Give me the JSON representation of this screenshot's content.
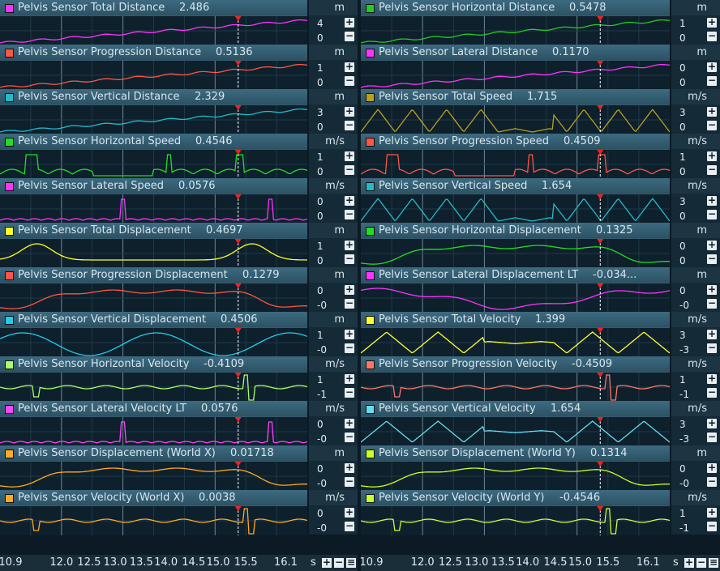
{
  "panels": [
    {
      "label": "Pelvis Sensor Total Distance",
      "value": "2.486",
      "unit": "m",
      "ticks": [
        "4",
        "0"
      ],
      "color": "#ff33ff",
      "shape": "rise",
      "vx": 205
    },
    {
      "label": "Pelvis Sensor Horizontal Distance",
      "value": "0.5478",
      "unit": "m",
      "ticks": [
        "1",
        "0"
      ],
      "color": "#22cc22",
      "shape": "rise",
      "vx": 243
    },
    {
      "label": "Pelvis Sensor Progression Distance",
      "value": "0.5136",
      "unit": "m",
      "ticks": [
        "1",
        "0"
      ],
      "color": "#ff5544",
      "shape": "rise",
      "vx": 250
    },
    {
      "label": "Pelvis Sensor Lateral Distance",
      "value": "0.1170",
      "unit": "m",
      "ticks": [
        "0",
        "0"
      ],
      "color": "#ff33ff",
      "shape": "rise",
      "vx": 210
    },
    {
      "label": "Pelvis Sensor Vertical Distance",
      "value": "2.329",
      "unit": "m",
      "ticks": [
        "3",
        "0"
      ],
      "color": "#22bbcc",
      "shape": "rise",
      "vx": 215
    },
    {
      "label": "Pelvis Sensor Total Speed",
      "value": "1.715",
      "unit": "m/s",
      "ticks": [
        "3",
        "0"
      ],
      "color": "#b8a020",
      "shape": "tri",
      "vx": 185
    },
    {
      "label": "Pelvis Sensor Horizontal Speed",
      "value": "0.4546",
      "unit": "m/s",
      "ticks": [
        "1",
        "0"
      ],
      "color": "#22dd22",
      "shape": "spiky",
      "vx": 220
    },
    {
      "label": "Pelvis Sensor Progression Speed",
      "value": "0.4509",
      "unit": "m/s",
      "ticks": [
        "1",
        "0"
      ],
      "color": "#ff5544",
      "shape": "spiky",
      "vx": 220
    },
    {
      "label": "Pelvis Sensor Lateral Speed",
      "value": "0.0576",
      "unit": "m/s",
      "ticks": [
        "0",
        "0"
      ],
      "color": "#ff33ff",
      "shape": "low",
      "vx": 205
    },
    {
      "label": "Pelvis Sensor Vertical Speed",
      "value": "1.654",
      "unit": "m/s",
      "ticks": [
        "3",
        "0"
      ],
      "color": "#22bbcc",
      "shape": "tri",
      "vx": 220
    },
    {
      "label": "Pelvis Sensor Total Displacement",
      "value": "0.4697",
      "unit": "m",
      "ticks": [
        "1",
        "0"
      ],
      "color": "#ffff22",
      "shape": "hump",
      "vx": 218
    },
    {
      "label": "Pelvis Sensor Horizontal Displacement",
      "value": "0.1325",
      "unit": "m",
      "ticks": [
        "0",
        "0"
      ],
      "color": "#22dd22",
      "shape": "plateau",
      "vx": 260
    },
    {
      "label": "Pelvis Sensor Progression Displacement",
      "value": "0.1279",
      "unit": "m",
      "ticks": [
        "0",
        "-0"
      ],
      "color": "#ff5544",
      "shape": "plateau",
      "vx": 268
    },
    {
      "label": "Pelvis Sensor Lateral Displacement LT",
      "value": "-0.034...",
      "unit": "m",
      "ticks": [
        "0",
        "-0"
      ],
      "color": "#ff33ff",
      "shape": "dip",
      "vx": 262
    },
    {
      "label": "Pelvis Sensor Vertical Displacement",
      "value": "0.4506",
      "unit": "m",
      "ticks": [
        "1",
        "-0"
      ],
      "color": "#22ccee",
      "shape": "sine",
      "vx": 218
    },
    {
      "label": "Pelvis Sensor Total Velocity",
      "value": "1.399",
      "unit": "m/s",
      "ticks": [
        "3",
        "-3"
      ],
      "color": "#ffff33",
      "shape": "zig",
      "vx": 190
    },
    {
      "label": "Pelvis Sensor Horizontal Velocity",
      "value": "-0.4109",
      "unit": "m/s",
      "ticks": [
        "1",
        "-1"
      ],
      "color": "#aaff66",
      "shape": "flatspike",
      "vx": 230
    },
    {
      "label": "Pelvis Sensor Progression Velocity",
      "value": "-0.4509",
      "unit": "m/s",
      "ticks": [
        "1",
        "-1"
      ],
      "color": "#ff7766",
      "shape": "flatspike",
      "vx": 230
    },
    {
      "label": "Pelvis Sensor Lateral Velocity LT",
      "value": "0.0576",
      "unit": "m/s",
      "ticks": [
        "0",
        "-0"
      ],
      "color": "#ff44ff",
      "shape": "low",
      "vx": 230
    },
    {
      "label": "Pelvis Sensor Vertical Velocity",
      "value": "1.654",
      "unit": "m/s",
      "ticks": [
        "3",
        "-3"
      ],
      "color": "#66ddee",
      "shape": "zig",
      "vx": 200
    },
    {
      "label": "Pelvis Sensor Displacement (World X)",
      "value": "0.01718",
      "unit": "m",
      "ticks": [
        "0",
        "-0"
      ],
      "color": "#ffaa22",
      "shape": "plateau",
      "vx": 250
    },
    {
      "label": "Pelvis Sensor Displacement (World Y)",
      "value": "0.1314",
      "unit": "m",
      "ticks": [
        "0",
        "-0"
      ],
      "color": "#ccff22",
      "shape": "plateau",
      "vx": 250
    },
    {
      "label": "Pelvis Sensor Velocity (World X)",
      "value": "0.0038",
      "unit": "m/s",
      "ticks": [
        "0",
        "-0"
      ],
      "color": "#ffaa22",
      "shape": "flatspike",
      "vx": 218
    },
    {
      "label": "Pelvis Sensor Velocity (World Y)",
      "value": "-0.4546",
      "unit": "m/s",
      "ticks": [
        "1",
        "-1"
      ],
      "color": "#ccff33",
      "shape": "flatspike",
      "vx": 225
    }
  ],
  "axis": {
    "ticks": [
      "10.9",
      "12.0",
      "12.5",
      "13.0",
      "13.5",
      "14.0",
      "14.5",
      "15.0",
      "15.5",
      "16.1"
    ],
    "unit": "s",
    "marker_time": 15.0
  },
  "icons": {
    "plus": "+",
    "minus": "−",
    "menu": "≡"
  }
}
